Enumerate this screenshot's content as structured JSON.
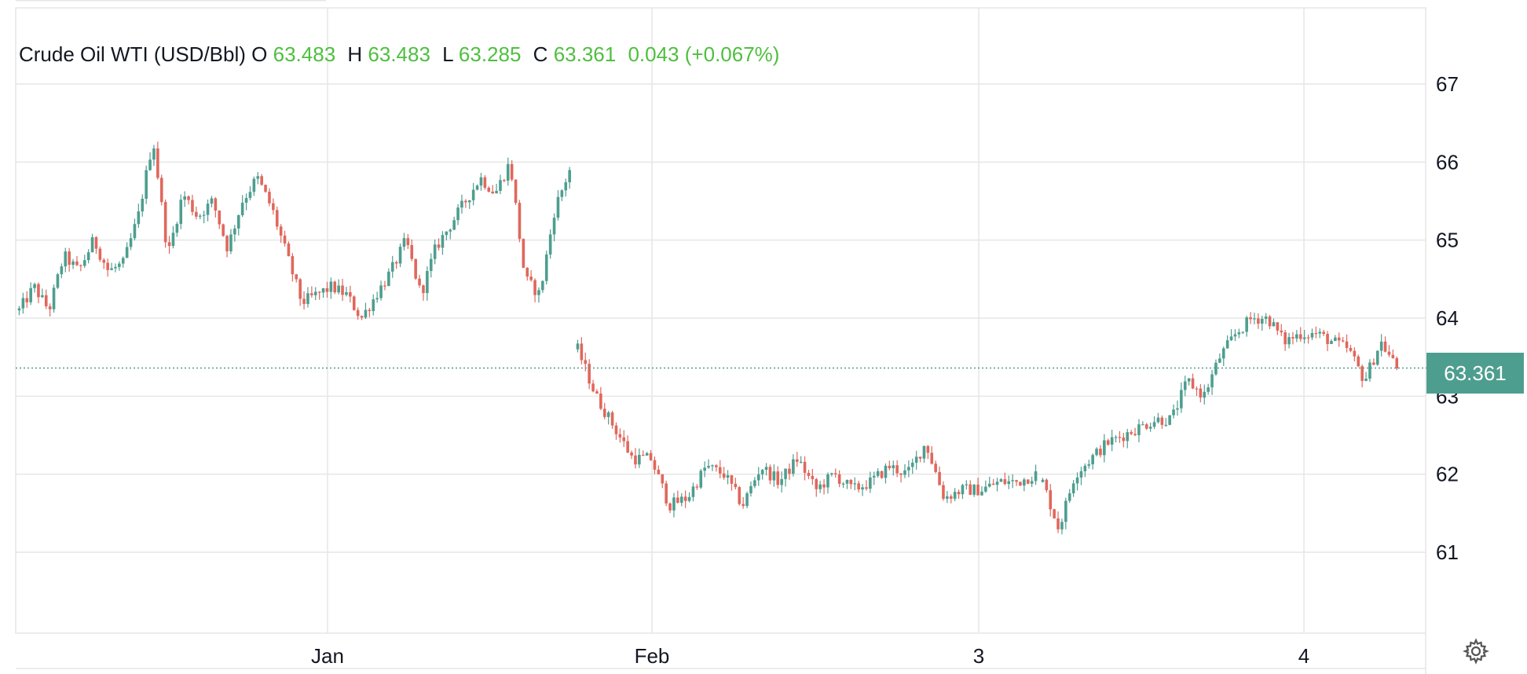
{
  "legend": {
    "symbol": "Crude Oil WTI (USD/Bbl)",
    "open_label": "O",
    "open": "63.483",
    "high_label": "H",
    "high": "63.483",
    "low_label": "L",
    "low": "63.285",
    "close_label": "C",
    "close": "63.361",
    "change": "0.043",
    "change_pct": "(+0.067%)"
  },
  "last_price_label": "63.361",
  "colors": {
    "up": "#4e9e8f",
    "down": "#e0675c",
    "grid": "#e6e6e6",
    "axis_text": "#131722",
    "legend_value": "#4fbf3f"
  },
  "icons": {
    "settings": "gear-icon"
  },
  "chart_data": {
    "type": "candlestick",
    "title": "Crude Oil WTI (USD/Bbl)",
    "ylim": [
      60,
      68
    ],
    "y_ticks": [
      61,
      62,
      63,
      64,
      65,
      66,
      67
    ],
    "x_ticks": [
      "Jan",
      "Feb",
      "3",
      "4"
    ],
    "last_price": 63.361,
    "grid": true,
    "segments": [
      {
        "x_range": [
          "Dec",
          "Jan 28"
        ],
        "path": [
          64.1,
          64.4,
          64.1,
          64.8,
          64.6,
          65.0,
          64.6,
          64.7,
          65.3,
          66.3,
          64.8,
          65.6,
          65.3,
          65.5,
          64.9,
          65.5,
          65.8,
          65.4,
          64.8,
          64.2,
          64.3,
          64.4,
          64.3,
          64.0,
          64.3,
          64.6,
          65.0,
          64.3,
          64.9,
          65.2,
          65.5,
          65.8,
          65.6,
          66.0,
          64.5,
          64.3,
          65.4,
          65.9
        ]
      },
      {
        "x_range": [
          "Jan 28",
          "3"
        ],
        "path": [
          63.6,
          63.0,
          62.6,
          62.2,
          62.2,
          61.6,
          61.7,
          62.1,
          62.0,
          61.6,
          62.1,
          61.9,
          62.2,
          61.8,
          62.0,
          61.8,
          61.9,
          62.1,
          62.0,
          62.4,
          61.7,
          61.8,
          61.8,
          61.9,
          61.9,
          62.0
        ]
      },
      {
        "x_range": [
          "3",
          "4"
        ],
        "path": [
          61.9,
          61.3,
          62.0,
          62.2,
          62.4,
          62.5,
          62.6,
          62.7,
          62.7,
          63.2,
          63.0,
          63.5,
          63.8,
          64.0,
          64.0,
          63.7,
          63.8,
          63.8,
          63.7,
          63.6,
          63.2,
          63.7,
          63.36
        ]
      }
    ]
  }
}
